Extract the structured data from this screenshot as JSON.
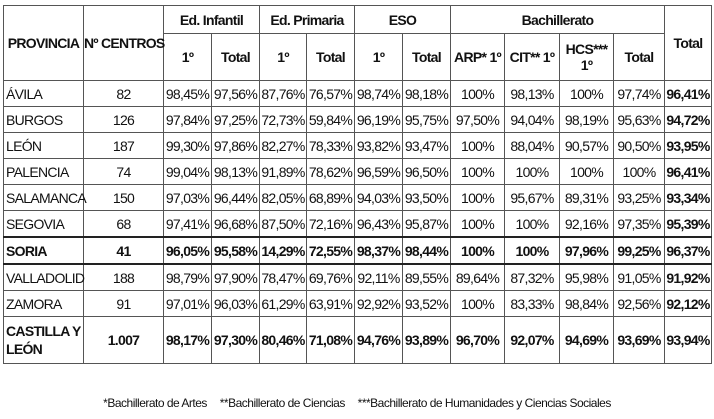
{
  "header": {
    "provincia": "PROVINCIA",
    "centros": "Nº CENTROS",
    "infantil": "Ed. Infantil",
    "primaria": "Ed. Primaria",
    "eso": "ESO",
    "bachillerato": "Bachillerato",
    "total": "Total",
    "sub": [
      "1º",
      "Total",
      "1º",
      "Total",
      "1º",
      "Total",
      "ARP* 1º",
      "CIT** 1º",
      "HCS*** 1º",
      "Total"
    ]
  },
  "rows": [
    {
      "provincia": "ÁVILA",
      "centros": "82",
      "values": [
        "98,45%",
        "97,56%",
        "87,76%",
        "76,57%",
        "98,74%",
        "98,18%",
        "100%",
        "98,13%",
        "100%",
        "97,74%"
      ],
      "total": "96,41%"
    },
    {
      "provincia": "BURGOS",
      "centros": "126",
      "values": [
        "97,84%",
        "97,25%",
        "72,73%",
        "59,84%",
        "96,19%",
        "95,75%",
        "97,50%",
        "94,04%",
        "98,19%",
        "95,63%"
      ],
      "total": "94,72%"
    },
    {
      "provincia": "LEÓN",
      "centros": "187",
      "values": [
        "99,30%",
        "97,86%",
        "82,27%",
        "78,33%",
        "93,82%",
        "93,47%",
        "100%",
        "88,04%",
        "90,57%",
        "90,50%"
      ],
      "total": "93,95%"
    },
    {
      "provincia": "PALENCIA",
      "centros": "74",
      "values": [
        "99,04%",
        "98,13%",
        "91,89%",
        "78,62%",
        "96,59%",
        "96,50%",
        "100%",
        "100%",
        "100%",
        "100%"
      ],
      "total": "96,41%"
    },
    {
      "provincia": "SALAMANCA",
      "centros": "150",
      "values": [
        "97,03%",
        "96,44%",
        "82,05%",
        "68,89%",
        "94,03%",
        "93,50%",
        "100%",
        "95,67%",
        "89,31%",
        "93,25%"
      ],
      "total": "93,34%"
    },
    {
      "provincia": "SEGOVIA",
      "centros": "68",
      "values": [
        "97,41%",
        "96,68%",
        "87,50%",
        "72,16%",
        "96,43%",
        "95,87%",
        "100%",
        "100%",
        "92,16%",
        "97,35%"
      ],
      "total": "95,39%"
    },
    {
      "provincia": "SORIA",
      "centros": "41",
      "values": [
        "96,05%",
        "95,58%",
        "14,29%",
        "72,55%",
        "98,37%",
        "98,44%",
        "100%",
        "100%",
        "97,96%",
        "99,25%"
      ],
      "total": "96,37%",
      "highlight": true
    },
    {
      "provincia": "VALLADOLID",
      "centros": "188",
      "values": [
        "98,79%",
        "97,90%",
        "78,47%",
        "69,76%",
        "92,11%",
        "89,55%",
        "89,64%",
        "87,32%",
        "95,98%",
        "91,05%"
      ],
      "total": "91,92%"
    },
    {
      "provincia": "ZAMORA",
      "centros": "91",
      "values": [
        "97,01%",
        "96,03%",
        "61,29%",
        "63,91%",
        "92,92%",
        "93,52%",
        "100%",
        "83,33%",
        "98,84%",
        "92,56%"
      ],
      "total": "92,12%"
    },
    {
      "provincia": "CASTILLA Y LEÓN",
      "centros": "1.007",
      "values": [
        "98,17%",
        "97,30%",
        "80,46%",
        "71,08%",
        "94,76%",
        "93,89%",
        "96,70%",
        "92,07%",
        "94,69%",
        "93,69%"
      ],
      "total": "93,94%",
      "summary": true
    }
  ],
  "footnotes": [
    "*Bachillerato de Artes",
    "**Bachillerato de Ciencias",
    "***Bachillerato de Humanidades y Ciencias Sociales"
  ]
}
